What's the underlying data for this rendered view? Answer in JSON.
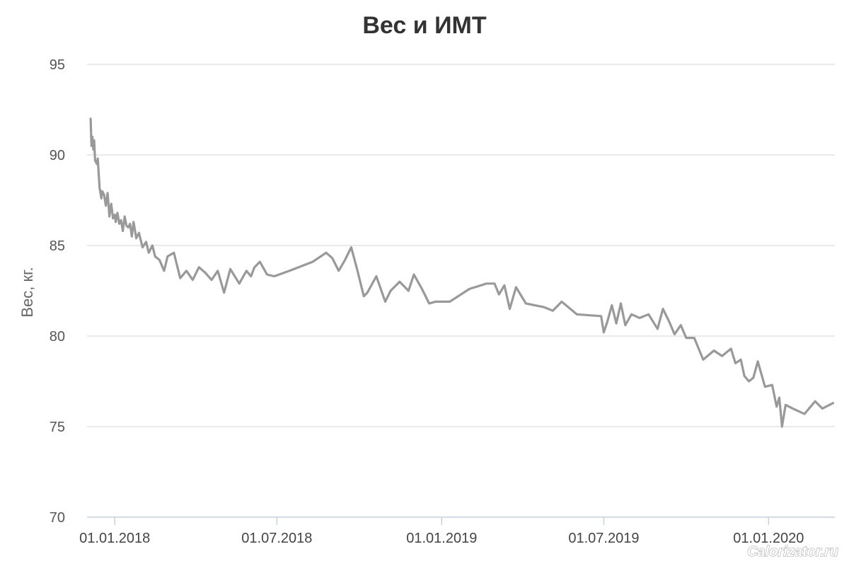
{
  "chart_data": {
    "type": "line",
    "title": "Вес и ИМТ",
    "ylabel": "Вес, кг.",
    "xlabel": "",
    "ylim": [
      70,
      95
    ],
    "yticks": [
      70,
      75,
      80,
      85,
      90,
      95
    ],
    "xlim": [
      "2017-12-01",
      "2020-03-15"
    ],
    "xticks": [
      {
        "date": "2018-01-01",
        "label": "01.01.2018"
      },
      {
        "date": "2018-07-01",
        "label": "01.07.2018"
      },
      {
        "date": "2019-01-01",
        "label": "01.01.2019"
      },
      {
        "date": "2019-07-01",
        "label": "01.07.2019"
      },
      {
        "date": "2020-01-01",
        "label": "01.01.2020"
      }
    ],
    "grid": true,
    "legend": "none",
    "line_color": "#999999",
    "series": [
      {
        "x": [
          "2017-12-05",
          "2017-12-06",
          "2017-12-07",
          "2017-12-08",
          "2017-12-09",
          "2017-12-10",
          "2017-12-12",
          "2017-12-13",
          "2017-12-15",
          "2017-12-17",
          "2017-12-18",
          "2017-12-20",
          "2017-12-22",
          "2017-12-24",
          "2017-12-26",
          "2017-12-28",
          "2017-12-30",
          "2018-01-01",
          "2018-01-02",
          "2018-01-04",
          "2018-01-06",
          "2018-01-08",
          "2018-01-10",
          "2018-01-12",
          "2018-01-14",
          "2018-01-16",
          "2018-01-18",
          "2018-01-20",
          "2018-01-22",
          "2018-01-25",
          "2018-01-28",
          "2018-02-01",
          "2018-02-05",
          "2018-02-08",
          "2018-02-12",
          "2018-02-15",
          "2018-02-20",
          "2018-02-25",
          "2018-03-01",
          "2018-03-08",
          "2018-03-15",
          "2018-03-22",
          "2018-03-29",
          "2018-04-05",
          "2018-04-12",
          "2018-04-19",
          "2018-04-26",
          "2018-05-03",
          "2018-05-10",
          "2018-05-20",
          "2018-05-28",
          "2018-06-02",
          "2018-06-06",
          "2018-06-12",
          "2018-06-20",
          "2018-06-28",
          "2018-07-15",
          "2018-08-10",
          "2018-08-25",
          "2018-09-01",
          "2018-09-08",
          "2018-09-15",
          "2018-09-22",
          "2018-09-29",
          "2018-10-06",
          "2018-10-10",
          "2018-10-20",
          "2018-10-30",
          "2018-11-05",
          "2018-11-15",
          "2018-11-25",
          "2018-12-01",
          "2018-12-10",
          "2018-12-18",
          "2018-12-25",
          "2019-01-10",
          "2019-02-01",
          "2019-02-20",
          "2019-03-01",
          "2019-03-06",
          "2019-03-12",
          "2019-03-18",
          "2019-03-25",
          "2019-04-05",
          "2019-04-15",
          "2019-04-25",
          "2019-05-05",
          "2019-05-15",
          "2019-06-01",
          "2019-06-28",
          "2019-07-01",
          "2019-07-05",
          "2019-07-10",
          "2019-07-15",
          "2019-07-20",
          "2019-07-25",
          "2019-08-01",
          "2019-08-10",
          "2019-08-20",
          "2019-08-30",
          "2019-09-05",
          "2019-09-12",
          "2019-09-18",
          "2019-09-25",
          "2019-10-01",
          "2019-10-10",
          "2019-10-20",
          "2019-11-01",
          "2019-11-10",
          "2019-11-20",
          "2019-11-25",
          "2019-12-01",
          "2019-12-05",
          "2019-12-10",
          "2019-12-15",
          "2019-12-20",
          "2019-12-28",
          "2020-01-05",
          "2020-01-10",
          "2020-01-13",
          "2020-01-16",
          "2020-01-20",
          "2020-01-28",
          "2020-02-10",
          "2020-02-22",
          "2020-03-01",
          "2020-03-13"
        ],
        "y": [
          92,
          90.5,
          91,
          90.3,
          90.8,
          89.7,
          89.5,
          89.8,
          88.2,
          87.6,
          88,
          87.8,
          87.2,
          87.9,
          86.6,
          87.3,
          86.5,
          86.7,
          86.3,
          86.8,
          86.2,
          86.4,
          85.8,
          86.6,
          86.1,
          86,
          86.2,
          85.5,
          86.3,
          85.4,
          85.7,
          84.9,
          85.2,
          84.6,
          85,
          84.4,
          84.2,
          83.6,
          84.4,
          84.6,
          83.2,
          83.6,
          83.1,
          83.8,
          83.5,
          83.1,
          83.6,
          82.4,
          83.7,
          82.9,
          83.6,
          83.3,
          83.8,
          84.1,
          83.4,
          83.3,
          83.6,
          84.1,
          84.6,
          84.3,
          83.6,
          84.2,
          84.9,
          83.6,
          82.2,
          82.4,
          83.3,
          81.9,
          82.5,
          83,
          82.5,
          83.4,
          82.6,
          81.8,
          81.9,
          81.9,
          82.6,
          82.9,
          82.9,
          82.3,
          82.8,
          81.5,
          82.7,
          81.8,
          81.7,
          81.6,
          81.4,
          81.9,
          81.2,
          81.1,
          80.2,
          80.8,
          81.7,
          80.7,
          81.8,
          80.6,
          81.2,
          81,
          81.2,
          80.4,
          81.5,
          80.8,
          80.1,
          80.6,
          79.9,
          79.9,
          78.7,
          79.2,
          78.9,
          79.3,
          78.5,
          78.7,
          77.8,
          77.5,
          77.7,
          78.6,
          77.2,
          77.3,
          76.1,
          76.6,
          75,
          76.2,
          76,
          75.7,
          76.4,
          76,
          76.3
        ]
      }
    ]
  },
  "watermark": "Calorizator.ru"
}
